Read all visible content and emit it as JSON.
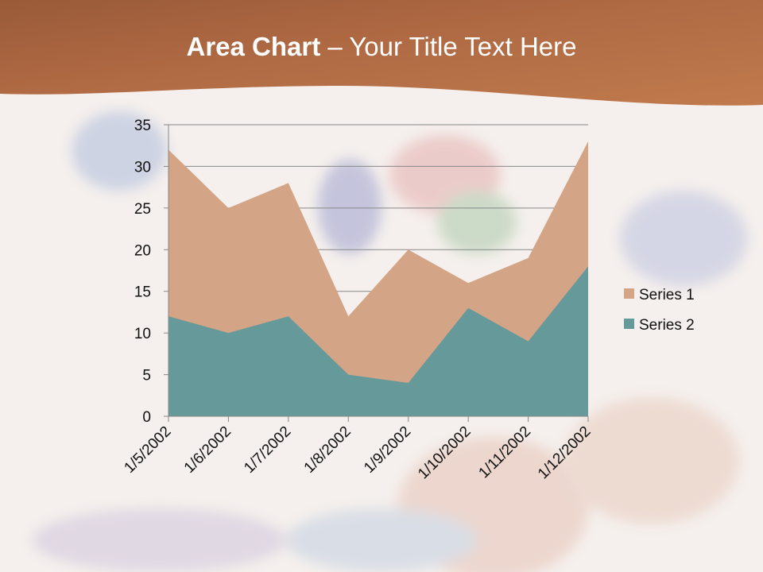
{
  "slide": {
    "title_bold": "Area Chart",
    "title_rest": " – Your Title Text Here",
    "header_color": "#b06a42"
  },
  "chart_data": {
    "type": "area",
    "title": "",
    "xlabel": "",
    "ylabel": "",
    "categories": [
      "1/5/2002",
      "1/6/2002",
      "1/7/2002",
      "1/8/2002",
      "1/9/2002",
      "1/10/2002",
      "1/11/2002",
      "1/12/2002"
    ],
    "series": [
      {
        "name": "Series 1",
        "values": [
          32,
          25,
          28,
          12,
          20,
          16,
          19,
          33
        ],
        "color": "#d4a486"
      },
      {
        "name": "Series 2",
        "values": [
          12,
          10,
          12,
          5,
          4,
          13,
          9,
          18
        ],
        "color": "#669999"
      }
    ],
    "ylim": [
      0,
      35
    ],
    "yticks": [
      0,
      5,
      10,
      15,
      20,
      25,
      30,
      35
    ],
    "grid": true,
    "stacked": false,
    "legend": "right"
  }
}
